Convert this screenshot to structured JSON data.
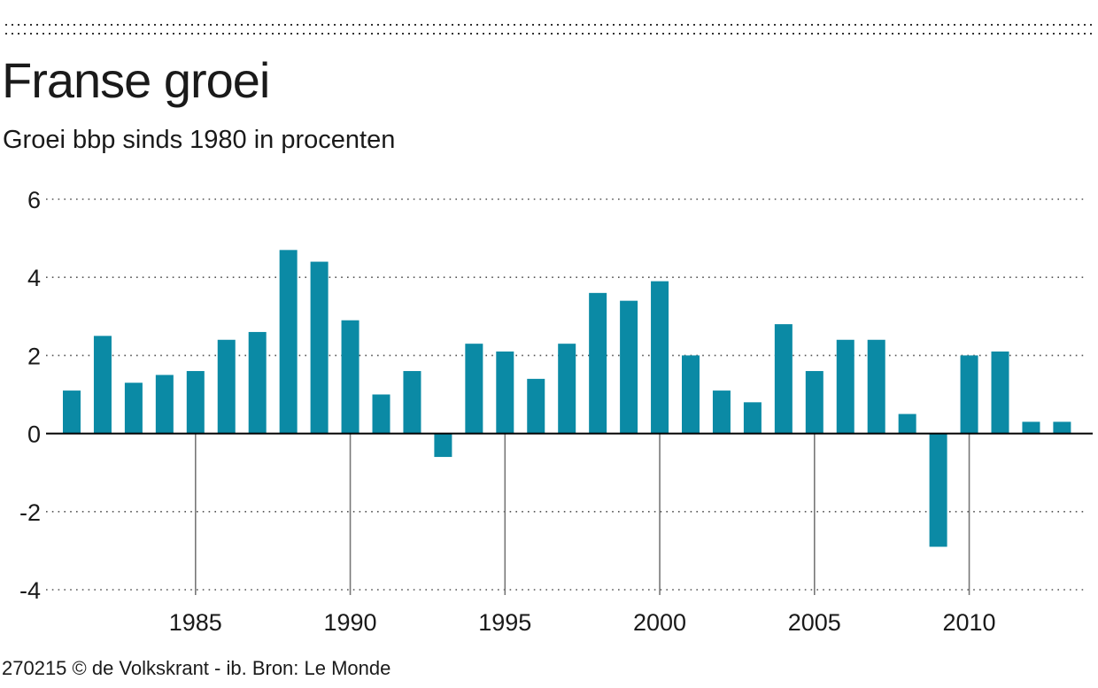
{
  "header": {
    "title": "Franse groei",
    "subtitle": "Groei bbp sinds 1980 in procenten"
  },
  "footer": {
    "source": "270215 © de Volkskrant - ib. Bron: Le Monde"
  },
  "colors": {
    "bar": "#0b8aa5",
    "grid": "#555555",
    "axis": "#000000",
    "tick": "#777777"
  },
  "chart_data": {
    "type": "bar",
    "title": "Franse groei",
    "subtitle": "Groei bbp sinds 1980 in procenten",
    "xlabel": "",
    "ylabel": "",
    "x": [
      1981,
      1982,
      1983,
      1984,
      1985,
      1986,
      1987,
      1988,
      1989,
      1990,
      1991,
      1992,
      1993,
      1994,
      1995,
      1996,
      1997,
      1998,
      1999,
      2000,
      2001,
      2002,
      2003,
      2004,
      2005,
      2006,
      2007,
      2008,
      2009,
      2010,
      2011,
      2012,
      2013
    ],
    "values": [
      1.1,
      2.5,
      1.3,
      1.5,
      1.6,
      2.4,
      2.6,
      4.7,
      4.4,
      2.9,
      1.0,
      1.6,
      -0.6,
      2.3,
      2.1,
      1.4,
      2.3,
      3.6,
      3.4,
      3.9,
      2.0,
      1.1,
      0.8,
      2.8,
      1.6,
      2.4,
      2.4,
      0.5,
      -2.9,
      2.0,
      2.1,
      0.3,
      0.3
    ],
    "ylim": [
      -4,
      6
    ],
    "y_ticks": [
      6,
      4,
      2,
      0,
      -2,
      -4
    ],
    "y_tick_labels": [
      "6",
      "4",
      "2",
      "0",
      "-2",
      "-4"
    ],
    "x_ticks": [
      1985,
      1990,
      1995,
      2000,
      2005,
      2010
    ],
    "x_tick_labels": [
      "1985",
      "1990",
      "1995",
      "2000",
      "2005",
      "2010"
    ],
    "grid": "dotted horizontal",
    "legend": "none"
  }
}
